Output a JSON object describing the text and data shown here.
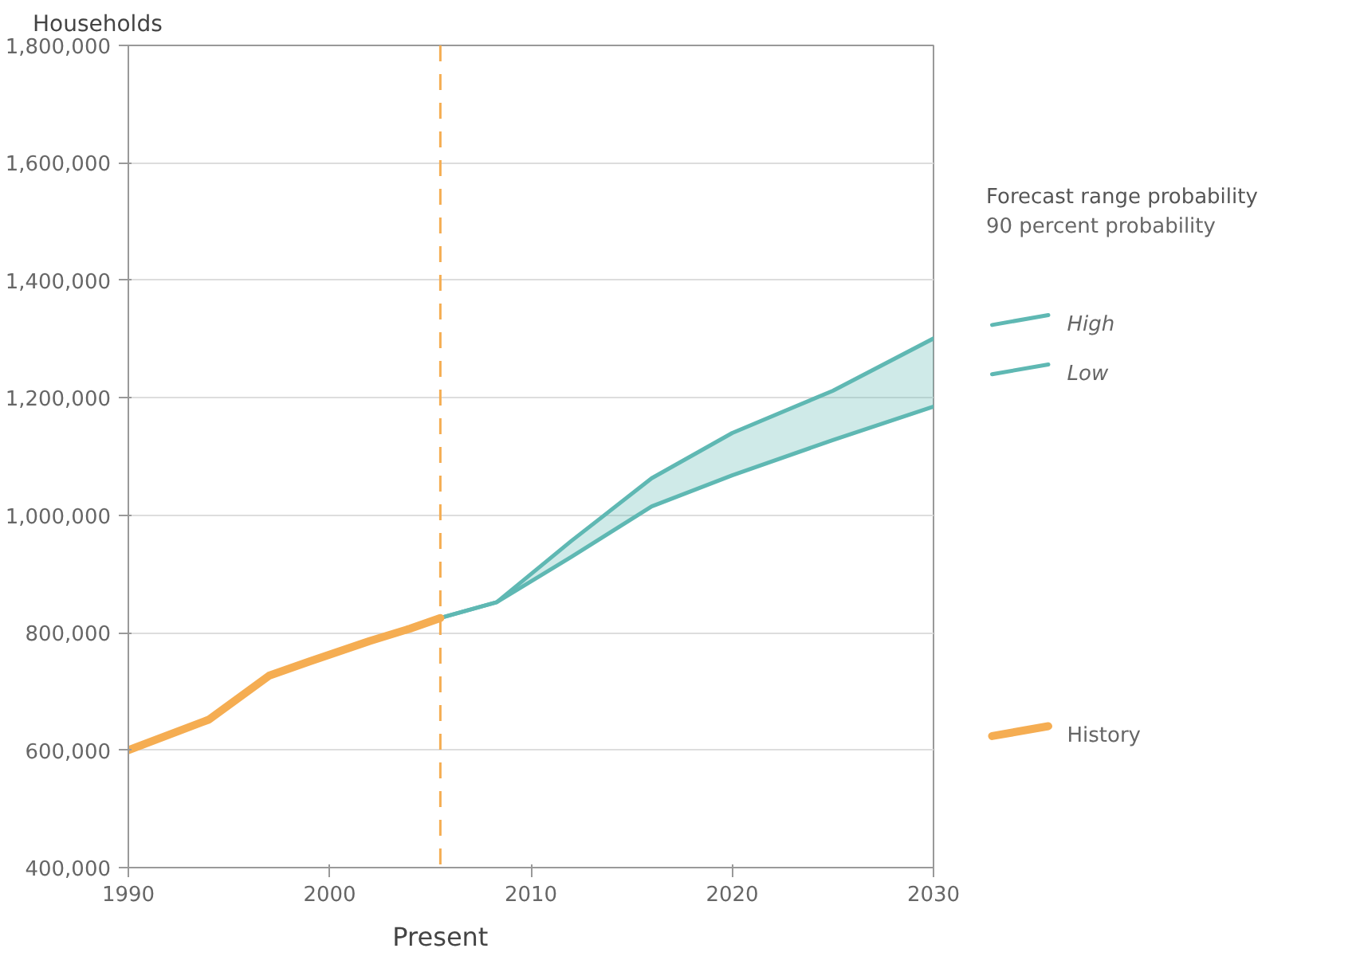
{
  "chart_data": {
    "type": "line",
    "ylabel": "Households",
    "legend_title": "Forecast range probability",
    "xlim": [
      1990,
      2030
    ],
    "xticks": [
      1990,
      2000,
      2010,
      2020,
      2030
    ],
    "ylim": [
      400000,
      1800000
    ],
    "yticks": [
      {
        "value": 400000,
        "label": "400,000"
      },
      {
        "value": 600000,
        "label": "600,000"
      },
      {
        "value": 800000,
        "label": "800,000"
      },
      {
        "value": 1000000,
        "label": "1,000,000"
      },
      {
        "value": 1200000,
        "label": "1,200,000"
      },
      {
        "value": 1400000,
        "label": "1,400,000"
      },
      {
        "value": 1600000,
        "label": "1,600,000"
      },
      {
        "value": 1800000,
        "label": "1,800,000"
      }
    ],
    "grid": "y",
    "legend": "right",
    "series": [
      {
        "name": "High",
        "color": "#5fb8b3",
        "x": [
          2005.5,
          2008.3,
          2012,
          2016,
          2020,
          2025,
          2030
        ],
        "values": [
          825000,
          852000,
          956000,
          1063000,
          1140000,
          1212000,
          1301000
        ],
        "lower": [
          825000,
          852000,
          929000,
          1015000,
          1068000,
          1128000,
          1185000
        ],
        "upper": [
          825000,
          852000,
          956000,
          1063000,
          1140000,
          1212000,
          1301000
        ]
      },
      {
        "name": "Low",
        "color": "#5fb8b3",
        "x": [
          2005.5,
          2008.3,
          2012,
          2016,
          2020,
          2025,
          2030
        ],
        "values": [
          825000,
          852000,
          929000,
          1015000,
          1068000,
          1128000,
          1185000
        ]
      },
      {
        "name": "History",
        "color": "#f5ad52",
        "x": [
          1990,
          1994,
          1997,
          1999,
          2002,
          2004,
          2005.5
        ],
        "values": [
          600000,
          652000,
          727000,
          751000,
          786000,
          807000,
          825000
        ]
      }
    ],
    "ref_lines": [
      {
        "axis": "x",
        "value": 2005.5,
        "label": "Present",
        "color": "#f5ad52",
        "line_style": "dashed"
      }
    ],
    "annotations": [
      "90 percent probability"
    ]
  }
}
